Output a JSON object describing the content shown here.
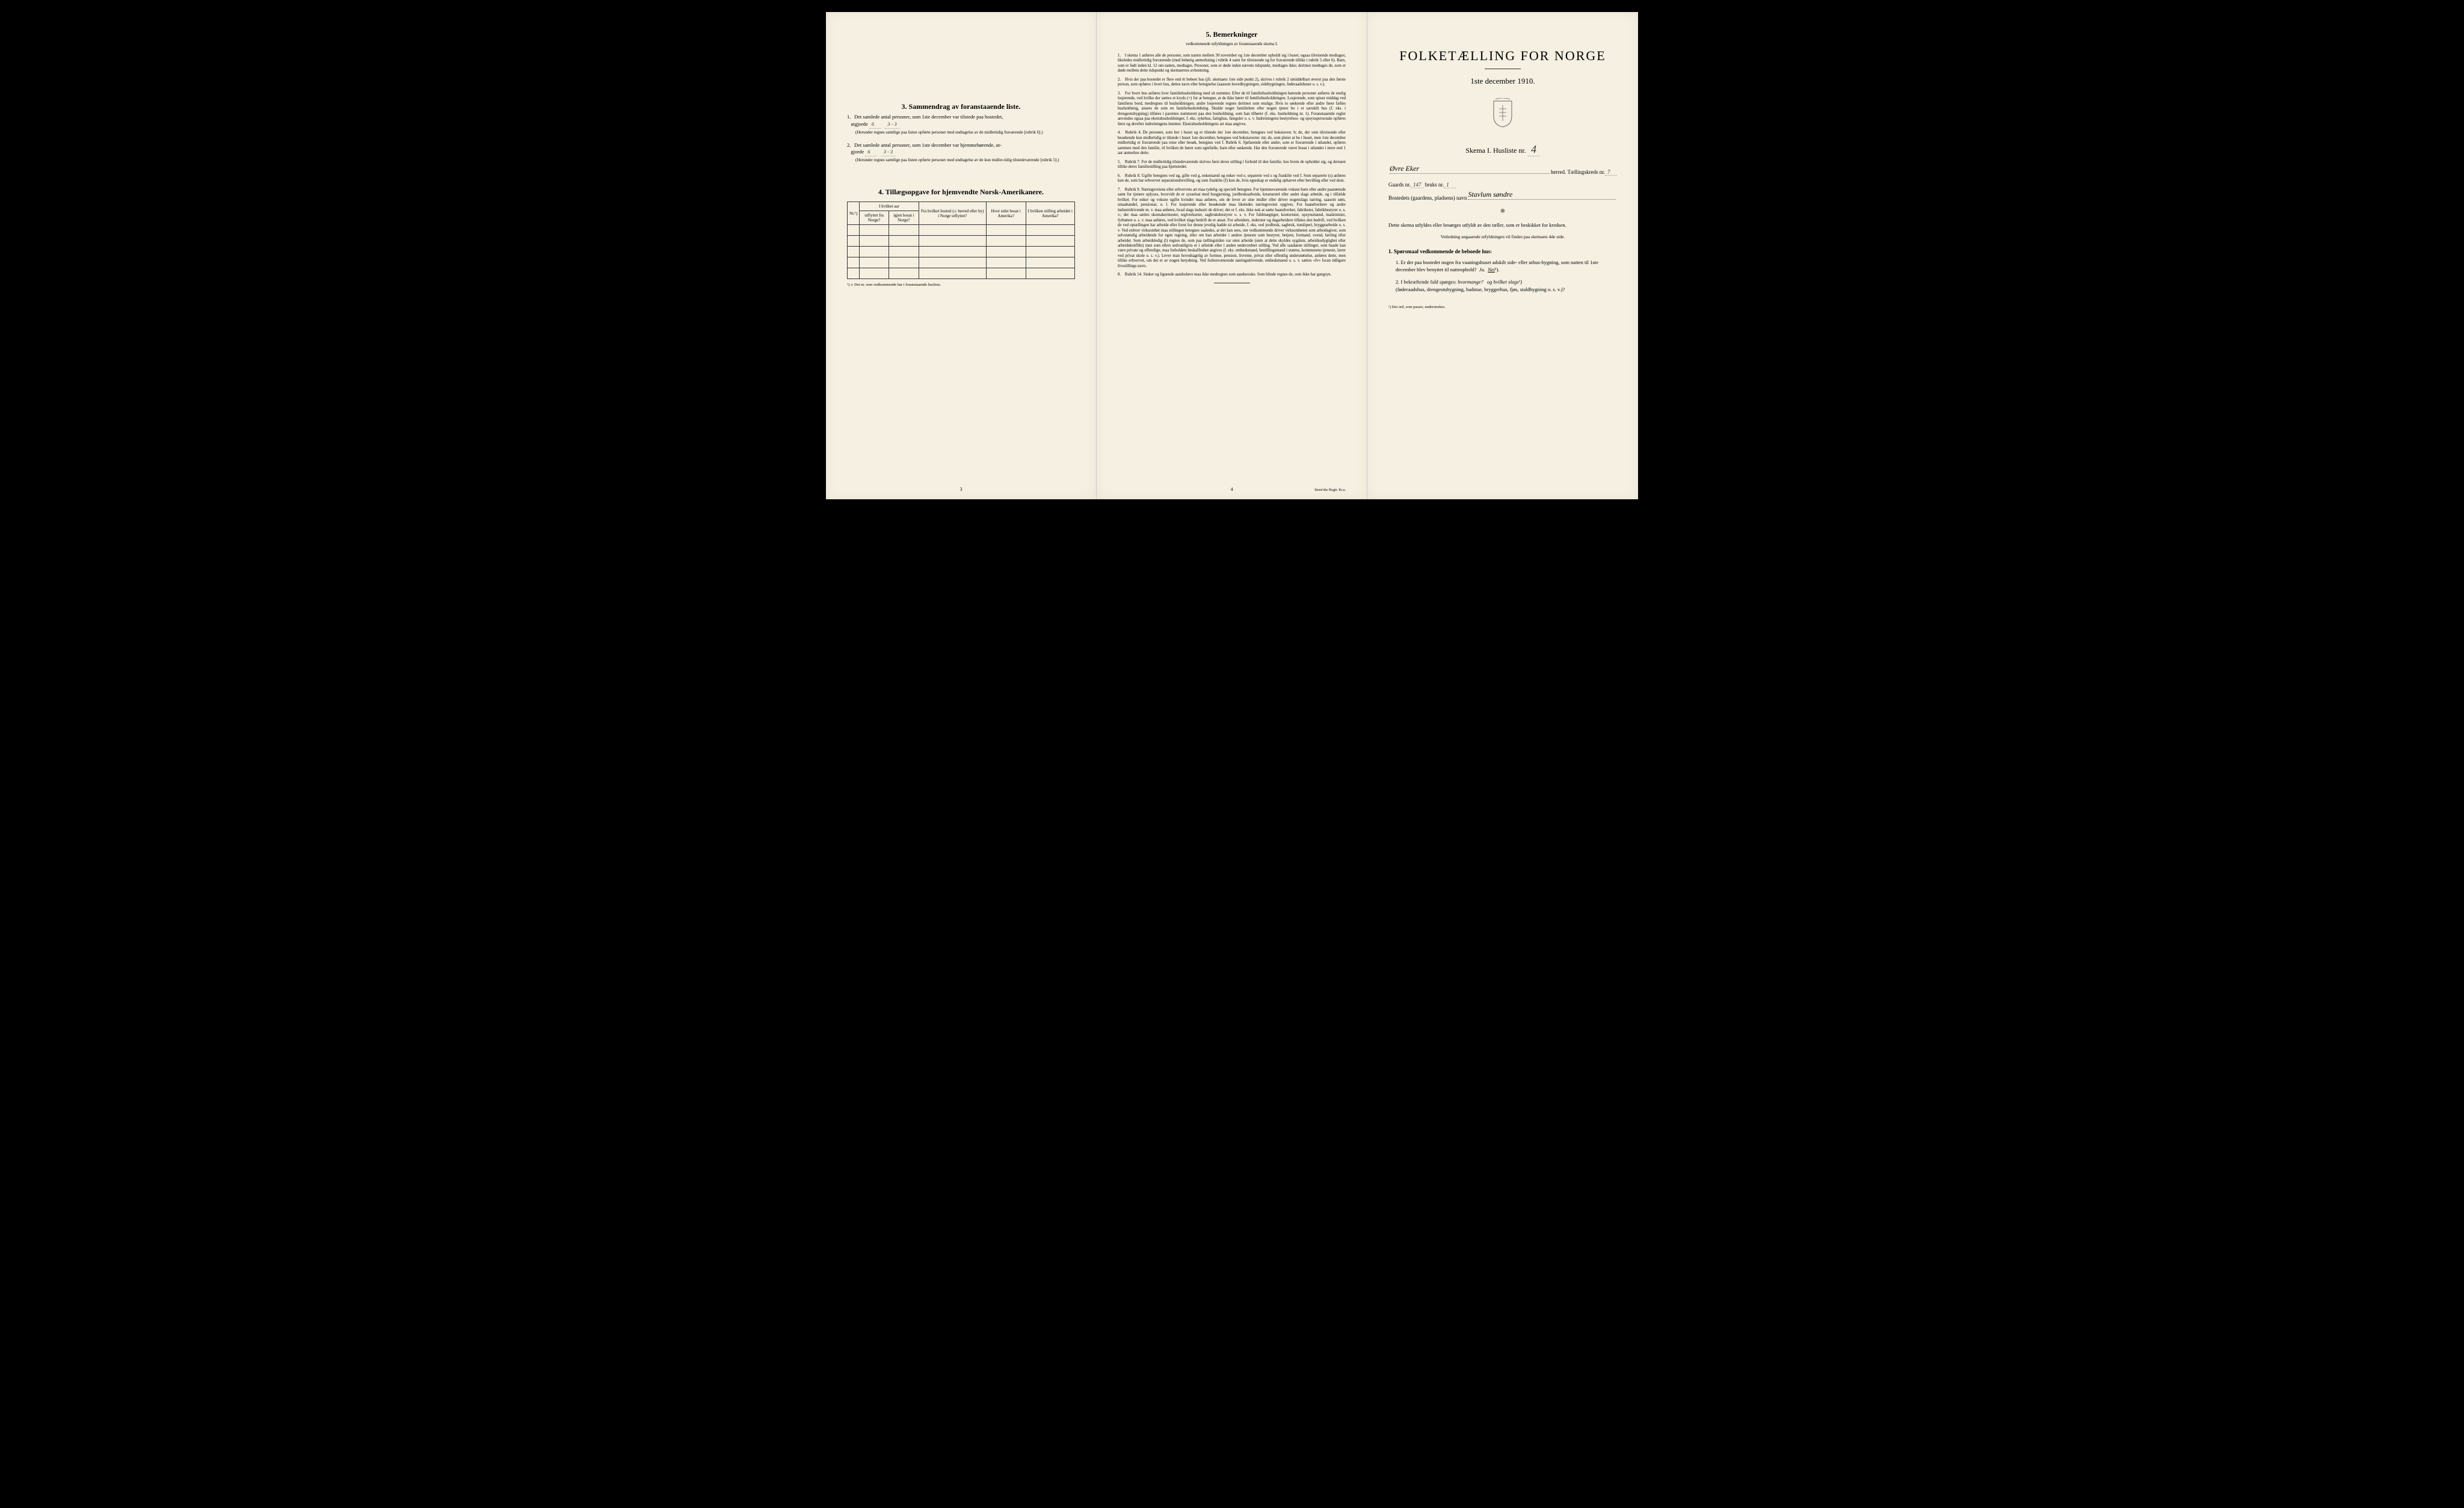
{
  "colors": {
    "paper": "#f5f0e1",
    "ink": "#222222",
    "border": "#333333",
    "background": "#000000"
  },
  "page1": {
    "section3": {
      "title": "3.   Sammendrag av foranstaaende liste.",
      "item1_text": "Det samlede antal personer, som 1ste december var tilstede paa bostedet,",
      "item1_label": "utgjorde",
      "item1_val1": "6",
      "item1_val2": "3 - 3",
      "item1_note": "(Herunder regnes samtlige paa listen opførte personer med undtagelse av de midlertidig fraværende [rubrik 6].)",
      "item2_text": "Det samlede antal personer, som 1ste december var hjemmehørende, ut-",
      "item2_label": "gjorde",
      "item2_val1": "6",
      "item2_val2": "3 - 3",
      "item2_note": "(Herunder regnes samtlige paa listen opførte personer med undtagelse av de kun midler-tidig tilstedeværende [rubrik 5].)"
    },
    "section4": {
      "title": "4.   Tillægsopgave for hjemvendte Norsk-Amerikanere.",
      "headers": {
        "nr": "Nr.¹)",
        "col1_top": "I hvilket aar",
        "col1a": "utflyttet fra Norge?",
        "col1b": "igjen bosat i Norge?",
        "col2": "Fra hvilket bosted (ɔ: herred eller by) i Norge utflyttet?",
        "col3": "Hvor sidst bosat i Amerika?",
        "col4": "I hvilken stilling arbeidet i Amerika?"
      },
      "footnote": "¹) ɔ: Det nr. som vedkommende har i foranstaaende husliste.",
      "empty_rows": 5
    },
    "page_num": "3"
  },
  "page2": {
    "title": "5.   Bemerkninger",
    "subtitle": "vedkommende utfyldningen av foranstaaende skema I.",
    "items": [
      "I skema 1 anføres alle de personer, som natten mellem 30 november og 1ste december opholdt sig i huset; ogsaa tilreisende medtages; likeledes midlertidig fraværende (med behørig anmerkning i rubrik 4 samt for tilreisende og for fraværende tillike i rubrik 5 eller 6). Barn, som er født inden kl. 12 om natten, medtages. Personer, som er døde inden nævnte tidspunkt, medtages ikke; derimot medtages de, som er døde mellem dette tidspunkt og skemaernes avhentning.",
      "Hvis der paa bostedet er flere end ét beboet hus (jfr. skemaets 1ste side punkt 2), skrives i rubrik 2 umiddelbart øverst paa den første person, som opføres i hvert hus, dettes navn eller betegnelse (saasom hovedbygningen, sidebygningen, føderaadshuset o. s. v.).",
      "For hvert hus anføres hver familiehusholdning med sit nummer. Efter de til familiehusholdningen hørende personer anføres de enslig losjerende, ved hvilke der sættes et kryds (×) for at betegne, at de ikke hører til familiehusholdningen. Losjerende, som spiser middag ved familiens bord, medregnes til husholdningen; andre losjerende regnes derimot som enslige. Hvis to søskende eller andre fører fælles husholdning, ansees de som en familiehusholdning. Skulde noget familielem eller nogen tjener bo i et særskilt hus (f. eks. i drengestubygning) tilføies i parentes nummeret paa den husholdning, som han tilhører (f. eks. husholdning nr. 1).\nForanstaaende regler anvendes ogsaa paa ekstrahusholdninger, f. eks. sykehus, fattighus, fængsler o. s. v. Indretningens bestyrelses- og opsynspersonale opføres først og derefter indretningens lemmer. Ekstrahusholdningens art maa angives.",
      "Rubrik 4. De personer, som bor i huset og er tilstede der 1ste december, betegnes ved bokstaven: b; de, der som tilreisende eller besøkende kun midlertidig er tilstede i huset 1ste december, betegnes ved bokstaverne: mt; de, som pleier at bo i huset, men 1ste december midlertidig er fraværende paa reise eller besøk, betegnes ved f.\nRubrik 6. Sjøfarende eller andre, som er fraværende i utlandet, opføres sammen med den familie, til hvilken de hører som egtefælle, barn eller søskende.\nHar den fraværende været bosat i utlandet i mere end 1 aar anmerkes dette.",
      "Rubrik 7. For de midlertidig tilstedeværende skrives først deres stilling i forhold til den familie, hos hvem de opholder sig, og dernæst tillike deres familiestilling paa hjemstedet.",
      "Rubrik 8. Ugifte betegnes ved ug, gifte ved g, enkemænd og enker ved e, separerte ved s og fraskilte ved f. Som separerte (s) anføres kun de, som har erhvervet separationsbevilling, og som fraskilte (f) kun de, hvis egteskap er endelig ophævet efter bevilling eller ved dom.",
      "Rubrik 9. Næringsveiens eller erhvervets art maa tydelig og specielt betegnes.\nFor hjemmeværende voksne barn eller andre paarørende samt for tjenere oplyses, hvorvidt de er sysselsat med husgjerning, jordbruksarbeide, kreaturstel eller andet slags arbeide, og i tilfælde hvilket. For enker og voksne ugifte kvinder maa anføres, om de lever av sine midler eller driver nogenslags næring, saasom søm, smaahandel, pensionat, o. l.\nFor losjerende eller besøkende maa likeledes næringsveien opgives.\nFor haandverkere og andre industridrivende m. v. maa anføres, hvad slags industri de driver; det er f. eks. ikke nok at sætte haandverker, fabrikeier, fabrikbestyrer o. s. v.; der maa sættes skomakermester, teglverkseier, sagbruksbestyrer o. s. v.\nFor fuldmægtiger, kontorister, opsynsmænd, maskinister, fyrbøtere o. s. v. maa anføres, ved hvilket slags bedrift de er ansat.\nFor arbeidere, inderster og dagarbeidere tilføies den bedrift, ved hvilken de ved optællingen har arbeide eller forut for denne jevnlig hadde sit arbeide, f. eks. ved jordbruk, sagbruk, træsliperi, bryggearbeide o. s. v.\nVed enhver virksomhet maa stillingen betegnes saaledes, at det kan sees, om vedkommende driver virksomheten som arbeidsgiver, som selvstændig arbeidende for egen regning, eller om han arbeider i andres tjeneste som bestyrer, betjent, formand, svend, lærling eller arbeider.\nSom arbeidsledig (l) regnes de, som paa tællingstiden var uten arbeide (uten at dette skyldes sygdom, arbeidsudygtighet eller arbeidskonflikt) men som ellers sedvanligvis er i arbeide eller i anden underordnet stilling.\nVed alle saadanne stillinger, som baade kan være private og offentlige, maa forholdets beskaffenhet angives (f. eks. embedsmand, bestillingsmand i statens, kommunens tjeneste, lærer ved privat skole o. s. v.).\nLever man hovedsagelig av formue, pension, livrente, privat eller offentlig understøttelse, anføres dette, men tillike erhvervet, om det er av nogen betydning.\nVed forhenvænrende næringsdrivende, embedsmænd o. s. v. sættes «fv» foran tidligere livsstillings navn.",
      "Rubrik 14. Sinker og lignende aandssløve maa ikke medregnes som aandssvake.\nSom blinde regnes de, som ikke har gangsyn."
    ],
    "page_num": "4",
    "printer": "Steen'ske Bogtr. Kr.a."
  },
  "page3": {
    "title": "FOLKETÆLLING FOR NORGE",
    "subtitle": "1ste december 1910.",
    "skema_label": "Skema I.   Husliste nr.",
    "skema_val": "4",
    "herred_val": "Øvre Eker",
    "herred_label": "herred.",
    "tkreds_label": "Tællingskreds nr.",
    "tkreds_val": "7",
    "gaards_label": "Gaards nr.",
    "gaards_val": "147",
    "bruks_label": "bruks nr.",
    "bruks_val": "1",
    "bosted_label": "Bostedets (gaardens, pladsens) navn",
    "bosted_val": "Stavlum søndre",
    "body1": "Dette skema utfyldes eller besørges utfyldt av den tæller, som er beskikket for kredsen.",
    "body2": "Veiledning angaaende utfyldningen vil findes paa skemaets 4de side.",
    "q_title": "1. Spørsmaal vedkommende de beboede hus:",
    "q1": "Er der paa bostedet nogen fra vaaningshuset adskilt side- eller uthus-bygning, som natten til 1ste december blev benyttet til natteophold?",
    "q1_answer_ja": "Ja.",
    "q1_answer_nei": "Nei",
    "q1_sup": "¹).",
    "q2": "I bekræftende fald spørges:",
    "q2_i": "hvormange?",
    "q2_ii": "og hvilket slags¹)",
    "q2_sub": "(føderaadshus, drengestubygning, badstue, bryggerhus, fjøs, staldbygning o. s. v.)?",
    "footnote": "¹) Det ord, som passer, understrekes."
  }
}
